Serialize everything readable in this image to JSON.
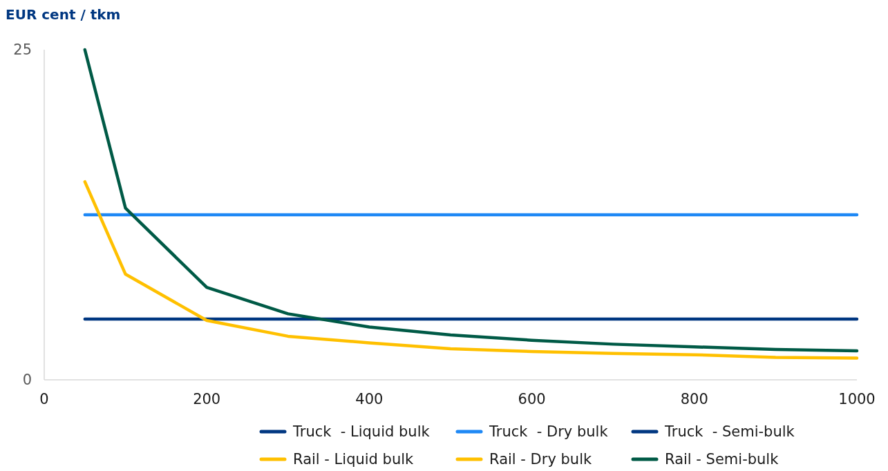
{
  "chart_data": {
    "type": "line",
    "ylabel": "EUR cent / tkm",
    "x": [
      50,
      100,
      200,
      300,
      400,
      500,
      600,
      700,
      800,
      900,
      1000
    ],
    "xlim": [
      0,
      1000
    ],
    "xticks": [
      0,
      200,
      400,
      600,
      800,
      1000
    ],
    "ylim": [
      0,
      25
    ],
    "yticks": [
      0,
      25
    ],
    "grid": false,
    "legend": "bottom",
    "marker": "none",
    "line_style": "solid",
    "series": [
      {
        "name": "Truck  - Liquid bulk",
        "color": "#003781",
        "values": [
          null,
          null,
          null,
          null,
          null,
          null,
          null,
          null,
          null,
          null,
          null
        ]
      },
      {
        "name": "Truck  - Dry bulk",
        "color": "#1e88f5",
        "values": [
          12.5,
          12.5,
          12.5,
          12.5,
          12.5,
          12.5,
          12.5,
          12.5,
          12.5,
          12.5,
          12.5
        ]
      },
      {
        "name": "Truck  - Semi-bulk",
        "color": "#003781",
        "values": [
          4.6,
          4.6,
          4.6,
          4.6,
          4.6,
          4.6,
          4.6,
          4.6,
          4.6,
          4.6,
          4.6
        ]
      },
      {
        "name": "Rail - Liquid bulk",
        "color": "#ffc000",
        "values": [
          null,
          null,
          null,
          null,
          null,
          null,
          null,
          null,
          null,
          null,
          null
        ]
      },
      {
        "name": "Rail - Dry bulk",
        "color": "#ffc000",
        "values": [
          15.0,
          8.0,
          4.5,
          3.3,
          2.8,
          2.35,
          2.15,
          2.0,
          1.9,
          1.7,
          1.65
        ]
      },
      {
        "name": "Rail - Semi-bulk",
        "color": "#005a46",
        "values": [
          25,
          13.0,
          7.0,
          5.0,
          4.0,
          3.4,
          3.0,
          2.7,
          2.5,
          2.3,
          2.2
        ]
      }
    ]
  }
}
